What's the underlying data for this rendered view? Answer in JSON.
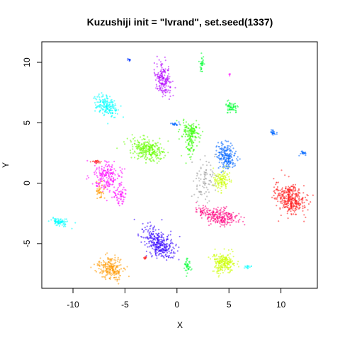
{
  "chart_data": {
    "type": "scatter",
    "title": "Kuzushiji init = \"lvrand\", set.seed(1337)",
    "xlabel": "X",
    "ylabel": "Y",
    "xlim": [
      -13,
      13.5
    ],
    "ylim": [
      -8.7,
      11.7
    ],
    "x_ticks": [
      -10,
      -5,
      0,
      5,
      10
    ],
    "y_ticks": [
      -5,
      0,
      5,
      10
    ],
    "grid": false,
    "legend": "none",
    "clusters": [
      {
        "color": "#ff1a1a",
        "cx": 10.9,
        "cy": -1.3,
        "sx": 0.75,
        "sy": 0.55,
        "rot": -20,
        "n": 360
      },
      {
        "color": "#ff00ff",
        "cx": -6.8,
        "cy": 0.6,
        "sx": 0.7,
        "sy": 0.55,
        "rot": 0,
        "n": 200
      },
      {
        "color": "#ff00ff",
        "cx": -5.5,
        "cy": -1.0,
        "sx": 0.3,
        "sy": 0.35,
        "rot": 0,
        "n": 60
      },
      {
        "color": "#ff0080",
        "cx": 4.2,
        "cy": -2.8,
        "sx": 0.9,
        "sy": 0.35,
        "rot": -10,
        "n": 220
      },
      {
        "color": "#ff0080",
        "cx": 2.4,
        "cy": -2.3,
        "sx": 0.35,
        "sy": 0.25,
        "rot": 0,
        "n": 40
      },
      {
        "color": "#3300ff",
        "cx": -1.7,
        "cy": -5.0,
        "sx": 0.85,
        "sy": 0.5,
        "rot": -40,
        "n": 320
      },
      {
        "color": "#ff9900",
        "cx": -6.4,
        "cy": -7.1,
        "sx": 0.6,
        "sy": 0.45,
        "rot": -20,
        "n": 220
      },
      {
        "color": "#ff9900",
        "cx": -7.4,
        "cy": -0.7,
        "sx": 0.2,
        "sy": 0.3,
        "rot": 0,
        "n": 40
      },
      {
        "color": "#ccff00",
        "cx": 4.5,
        "cy": -6.6,
        "sx": 0.55,
        "sy": 0.45,
        "rot": 0,
        "n": 220
      },
      {
        "color": "#ccff00",
        "cx": 4.3,
        "cy": 0.25,
        "sx": 0.4,
        "sy": 0.4,
        "rot": 0,
        "n": 120
      },
      {
        "color": "#66ff00",
        "cx": -2.8,
        "cy": 2.8,
        "sx": 0.85,
        "sy": 0.4,
        "rot": -15,
        "n": 280
      },
      {
        "color": "#00ffff",
        "cx": -6.8,
        "cy": 6.3,
        "sx": 0.55,
        "sy": 0.4,
        "rot": -20,
        "n": 180
      },
      {
        "color": "#00ffff",
        "cx": -11.3,
        "cy": -3.2,
        "sx": 0.4,
        "sy": 0.15,
        "rot": -10,
        "n": 80
      },
      {
        "color": "#00ffff",
        "cx": 6.8,
        "cy": -6.9,
        "sx": 0.2,
        "sy": 0.08,
        "rot": 0,
        "n": 15
      },
      {
        "color": "#0066ff",
        "cx": 4.8,
        "cy": 2.2,
        "sx": 0.45,
        "sy": 0.55,
        "rot": 0,
        "n": 200
      },
      {
        "color": "#0066ff",
        "cx": 9.2,
        "cy": 4.2,
        "sx": 0.15,
        "sy": 0.12,
        "rot": 0,
        "n": 25
      },
      {
        "color": "#0066ff",
        "cx": 12.2,
        "cy": 2.5,
        "sx": 0.2,
        "sy": 0.08,
        "rot": 0,
        "n": 20
      },
      {
        "color": "#0066ff",
        "cx": -0.2,
        "cy": 4.9,
        "sx": 0.2,
        "sy": 0.08,
        "rot": 0,
        "n": 20
      },
      {
        "color": "#b300ff",
        "cx": -1.3,
        "cy": 8.6,
        "sx": 0.35,
        "sy": 0.65,
        "rot": 10,
        "n": 180
      },
      {
        "color": "#00ff33",
        "cx": 5.2,
        "cy": 6.3,
        "sx": 0.35,
        "sy": 0.25,
        "rot": 0,
        "n": 60
      },
      {
        "color": "#00ff33",
        "cx": 1.0,
        "cy": -7.0,
        "sx": 0.15,
        "sy": 0.3,
        "rot": 0,
        "n": 40
      },
      {
        "color": "#00ff33",
        "cx": 2.4,
        "cy": 10.0,
        "sx": 0.1,
        "sy": 0.4,
        "rot": 0,
        "n": 30
      },
      {
        "color": "#33ff00",
        "cx": 1.2,
        "cy": 4.3,
        "sx": 0.45,
        "sy": 0.35,
        "rot": 0,
        "n": 120
      },
      {
        "color": "#33ff00",
        "cx": 1.3,
        "cy": 3.2,
        "sx": 0.25,
        "sy": 0.6,
        "rot": 0,
        "n": 60
      },
      {
        "color": "#999999",
        "cx": 2.6,
        "cy": 0.3,
        "sx": 0.55,
        "sy": 0.85,
        "rot": 0,
        "n": 90
      },
      {
        "color": "#0033ff",
        "cx": -4.6,
        "cy": 10.2,
        "sx": 0.08,
        "sy": 0.1,
        "rot": 0,
        "n": 10
      },
      {
        "color": "#ff1a1a",
        "cx": -7.8,
        "cy": 1.8,
        "sx": 0.25,
        "sy": 0.08,
        "rot": 0,
        "n": 20
      },
      {
        "color": "#ff1a1a",
        "cx": -3.1,
        "cy": -6.2,
        "sx": 0.08,
        "sy": 0.12,
        "rot": 0,
        "n": 10
      },
      {
        "color": "#ff00ff",
        "cx": 5.1,
        "cy": 9.0,
        "sx": 0.05,
        "sy": 0.05,
        "rot": 0,
        "n": 5
      }
    ]
  }
}
